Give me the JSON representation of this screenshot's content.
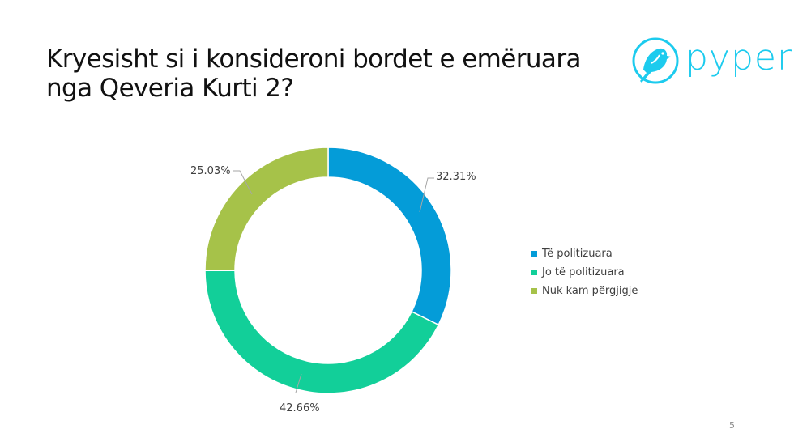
{
  "slide": {
    "title": "Kryesisht si i konsideroni bordet e emëruara nga Qeveria Kurti 2?",
    "title_line1": "Kryesisht si i konsideroni bordet e emëruara",
    "title_line2": "nga Qeveria Kurti 2?",
    "page_number": "5",
    "logo": {
      "text": "pyper",
      "icon": "bird-in-circle-icon",
      "color": "#1ccbee"
    }
  },
  "chart_data": {
    "type": "pie",
    "subtype": "donut",
    "title": "Kryesisht si i konsideroni bordet e emëruara nga Qeveria Kurti 2?",
    "categories": [
      "Të politizuara",
      "Jo të politizuara",
      "Nuk kam përgjigje"
    ],
    "values": [
      32.31,
      42.66,
      25.03
    ],
    "labels": [
      "32.31%",
      "42.66%",
      "25.03%"
    ],
    "colors": [
      "#049cd8",
      "#12cf99",
      "#a6c249"
    ],
    "legend_position": "right",
    "start_angle": "12 o'clock, clockwise"
  },
  "legend": [
    {
      "label": "Të politizuara",
      "color": "#049cd8"
    },
    {
      "label": "Jo të politizuara",
      "color": "#12cf99"
    },
    {
      "label": "Nuk kam përgjigje",
      "color": "#a6c249"
    }
  ]
}
